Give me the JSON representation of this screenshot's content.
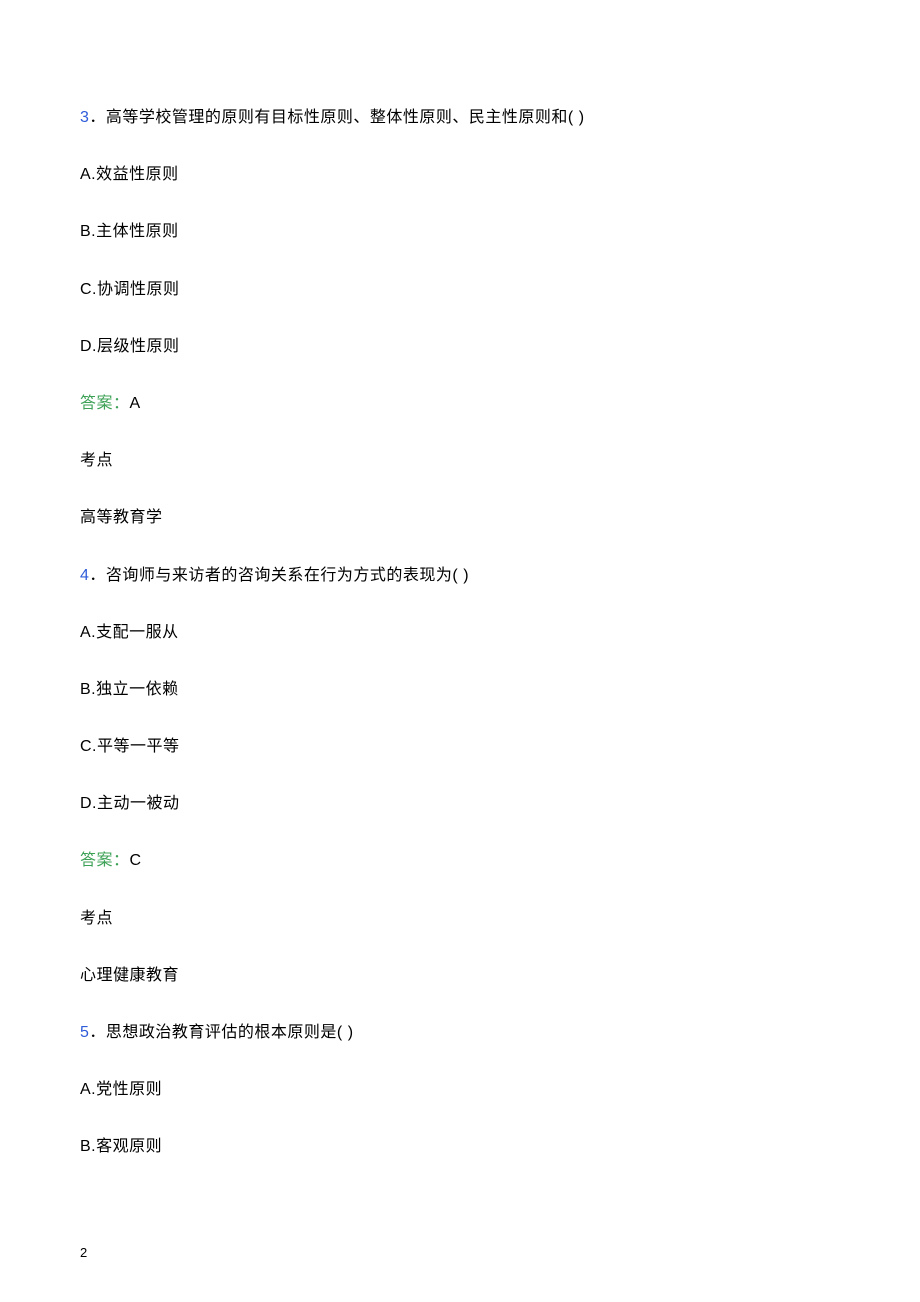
{
  "page": {
    "number": "2"
  },
  "questions": [
    {
      "number": "3",
      "separator": "．",
      "text": "高等学校管理的原则有目标性原则、整体性原则、民主性原则和( )",
      "options": [
        "A.效益性原则",
        "B.主体性原则",
        "C.协调性原则",
        "D.层级性原则"
      ],
      "answerLabel": "答案：",
      "answerValue": "A",
      "topicLabel": "考点",
      "topic": "高等教育学"
    },
    {
      "number": "4",
      "separator": "．",
      "text": "咨询师与来访者的咨询关系在行为方式的表现为( )",
      "options": [
        "A.支配一服从",
        "B.独立一依赖",
        "C.平等一平等",
        "D.主动一被动"
      ],
      "answerLabel": "答案：",
      "answerValue": "C",
      "topicLabel": "考点",
      "topic": "心理健康教育"
    },
    {
      "number": "5",
      "separator": "．",
      "text": "思想政治教育评估的根本原则是( )",
      "options": [
        "A.党性原则",
        "B.客观原则"
      ]
    }
  ]
}
